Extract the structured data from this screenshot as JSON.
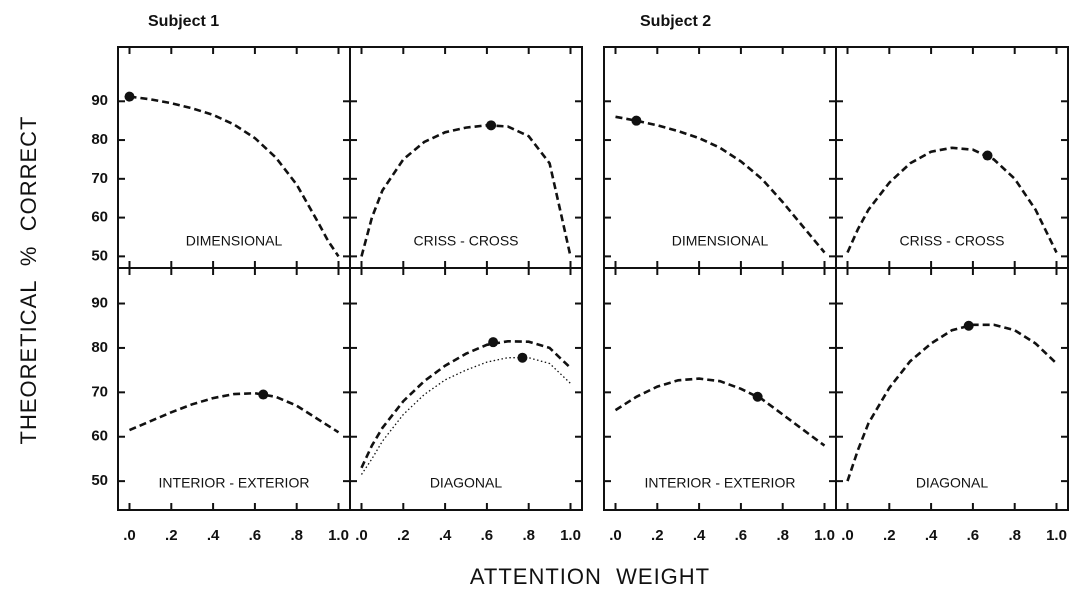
{
  "subjects": [
    "Subject 1",
    "Subject 2"
  ],
  "y_axis_label": "THEORETICAL  %  CORRECT",
  "x_axis_label": "ATTENTION  WEIGHT",
  "chart_data": [
    {
      "type": "line",
      "title": "DIMENSIONAL",
      "xlim": [
        -0.055,
        1.055
      ],
      "ylim": [
        47,
        104
      ],
      "yticks": [
        50,
        60,
        70,
        80,
        90
      ],
      "series": [
        {
          "color": "#111111",
          "dash": "dashed",
          "x": [
            0,
            0.1,
            0.2,
            0.3,
            0.4,
            0.5,
            0.6,
            0.7,
            0.8,
            0.9,
            0.95,
            1.0
          ],
          "values": [
            91.2,
            90.5,
            89.5,
            88.2,
            86.5,
            84,
            80.5,
            75.5,
            68.5,
            59,
            54,
            50
          ],
          "marker": {
            "x": 0,
            "y": 91.2
          }
        }
      ]
    },
    {
      "type": "line",
      "title": "CRISS - CROSS",
      "xlim": [
        -0.055,
        1.055
      ],
      "ylim": [
        47,
        104
      ],
      "series": [
        {
          "color": "#111111",
          "dash": "dashed",
          "x": [
            0,
            0.05,
            0.1,
            0.2,
            0.3,
            0.4,
            0.5,
            0.6,
            0.7,
            0.8,
            0.9,
            0.95,
            1.0
          ],
          "values": [
            50,
            60,
            67,
            75,
            79.5,
            82,
            83.2,
            83.8,
            83.5,
            81,
            74,
            62,
            50
          ],
          "marker": {
            "x": 0.62,
            "y": 83.8
          }
        }
      ]
    },
    {
      "type": "line",
      "title": "INTERIOR - EXTERIOR",
      "xlim": [
        -0.055,
        1.055
      ],
      "ylim": [
        43.5,
        98
      ],
      "yticks": [
        50,
        60,
        70,
        80,
        90
      ],
      "xticks": [
        {
          "value": 0,
          "label": ".0"
        },
        {
          "value": 0.2,
          "label": ".2"
        },
        {
          "value": 0.4,
          "label": ".4"
        },
        {
          "value": 0.6,
          "label": ".6"
        },
        {
          "value": 0.8,
          "label": ".8"
        },
        {
          "value": 1,
          "label": "1.0"
        }
      ],
      "series": [
        {
          "color": "#111111",
          "dash": "dashed",
          "x": [
            0,
            0.1,
            0.2,
            0.3,
            0.4,
            0.5,
            0.6,
            0.7,
            0.8,
            0.9,
            1.0
          ],
          "values": [
            61.5,
            63.5,
            65.5,
            67.3,
            68.7,
            69.6,
            69.8,
            69,
            67,
            64,
            61
          ],
          "marker": {
            "x": 0.64,
            "y": 69.5
          }
        }
      ]
    },
    {
      "type": "line",
      "title": "DIAGONAL",
      "xlim": [
        -0.055,
        1.055
      ],
      "ylim": [
        43.5,
        98
      ],
      "xticks": [
        {
          "value": 0,
          "label": ".0"
        },
        {
          "value": 0.2,
          "label": ".2"
        },
        {
          "value": 0.4,
          "label": ".4"
        },
        {
          "value": 0.6,
          "label": ".6"
        },
        {
          "value": 0.8,
          "label": ".8"
        },
        {
          "value": 1,
          "label": "1.0"
        }
      ],
      "series": [
        {
          "color": "#111111",
          "dash": "dashed",
          "x": [
            0,
            0.05,
            0.1,
            0.2,
            0.3,
            0.4,
            0.5,
            0.6,
            0.7,
            0.8,
            0.9,
            1.0
          ],
          "values": [
            53,
            58,
            62,
            68,
            72.5,
            76,
            78.7,
            80.7,
            81.5,
            81.4,
            80,
            75.5
          ],
          "marker": {
            "x": 0.63,
            "y": 81.3
          }
        },
        {
          "color": "#111111",
          "dash": "dotted",
          "x": [
            0,
            0.05,
            0.1,
            0.2,
            0.3,
            0.4,
            0.5,
            0.6,
            0.7,
            0.8,
            0.9,
            1.0
          ],
          "values": [
            51.5,
            55,
            59,
            65,
            69.5,
            72.8,
            75,
            76.8,
            77.8,
            77.8,
            76.5,
            72
          ],
          "marker": {
            "x": 0.77,
            "y": 77.8
          }
        }
      ]
    },
    {
      "type": "line",
      "title": "DIMENSIONAL",
      "xlim": [
        -0.055,
        1.055
      ],
      "ylim": [
        47,
        104
      ],
      "series": [
        {
          "color": "#111111",
          "dash": "dashed",
          "x": [
            0,
            0.1,
            0.2,
            0.3,
            0.4,
            0.5,
            0.6,
            0.7,
            0.8,
            0.9,
            1.0
          ],
          "values": [
            86,
            85,
            83.8,
            82.3,
            80.5,
            78,
            74.5,
            70,
            64,
            57.5,
            51
          ],
          "marker": {
            "x": 0.1,
            "y": 85
          }
        }
      ]
    },
    {
      "type": "line",
      "title": "CRISS - CROSS",
      "xlim": [
        -0.055,
        1.055
      ],
      "ylim": [
        47,
        104
      ],
      "series": [
        {
          "color": "#111111",
          "dash": "dashed",
          "x": [
            0,
            0.05,
            0.1,
            0.2,
            0.3,
            0.4,
            0.5,
            0.6,
            0.7,
            0.8,
            0.9,
            1.0
          ],
          "values": [
            51,
            57,
            62,
            69,
            74,
            77,
            78,
            77.5,
            75,
            70,
            62,
            51
          ],
          "marker": {
            "x": 0.67,
            "y": 76
          }
        }
      ]
    },
    {
      "type": "line",
      "title": "INTERIOR - EXTERIOR",
      "xlim": [
        -0.055,
        1.055
      ],
      "ylim": [
        43.5,
        98
      ],
      "xticks": [
        {
          "value": 0,
          "label": ".0"
        },
        {
          "value": 0.2,
          "label": ".2"
        },
        {
          "value": 0.4,
          "label": ".4"
        },
        {
          "value": 0.6,
          "label": ".6"
        },
        {
          "value": 0.8,
          "label": ".8"
        },
        {
          "value": 1,
          "label": "1.0"
        }
      ],
      "series": [
        {
          "color": "#111111",
          "dash": "dashed",
          "x": [
            0,
            0.1,
            0.2,
            0.3,
            0.4,
            0.5,
            0.6,
            0.7,
            0.8,
            0.9,
            1.0
          ],
          "values": [
            66,
            69,
            71.3,
            72.7,
            73.1,
            72.5,
            70.8,
            68.5,
            65,
            61.5,
            58
          ],
          "marker": {
            "x": 0.68,
            "y": 69
          }
        }
      ]
    },
    {
      "type": "line",
      "title": "DIAGONAL",
      "xlim": [
        -0.055,
        1.055
      ],
      "ylim": [
        43.5,
        98
      ],
      "xticks": [
        {
          "value": 0,
          "label": ".0"
        },
        {
          "value": 0.2,
          "label": ".2"
        },
        {
          "value": 0.4,
          "label": ".4"
        },
        {
          "value": 0.6,
          "label": ".6"
        },
        {
          "value": 0.8,
          "label": ".8"
        },
        {
          "value": 1,
          "label": "1.0"
        }
      ],
      "series": [
        {
          "color": "#111111",
          "dash": "dashed",
          "x": [
            0,
            0.05,
            0.1,
            0.2,
            0.3,
            0.4,
            0.5,
            0.6,
            0.7,
            0.8,
            0.9,
            1.0
          ],
          "values": [
            50,
            57,
            63,
            71,
            77,
            81,
            84,
            85.2,
            85.2,
            84,
            81,
            76.5
          ],
          "marker": {
            "x": 0.58,
            "y": 85
          }
        }
      ]
    }
  ]
}
